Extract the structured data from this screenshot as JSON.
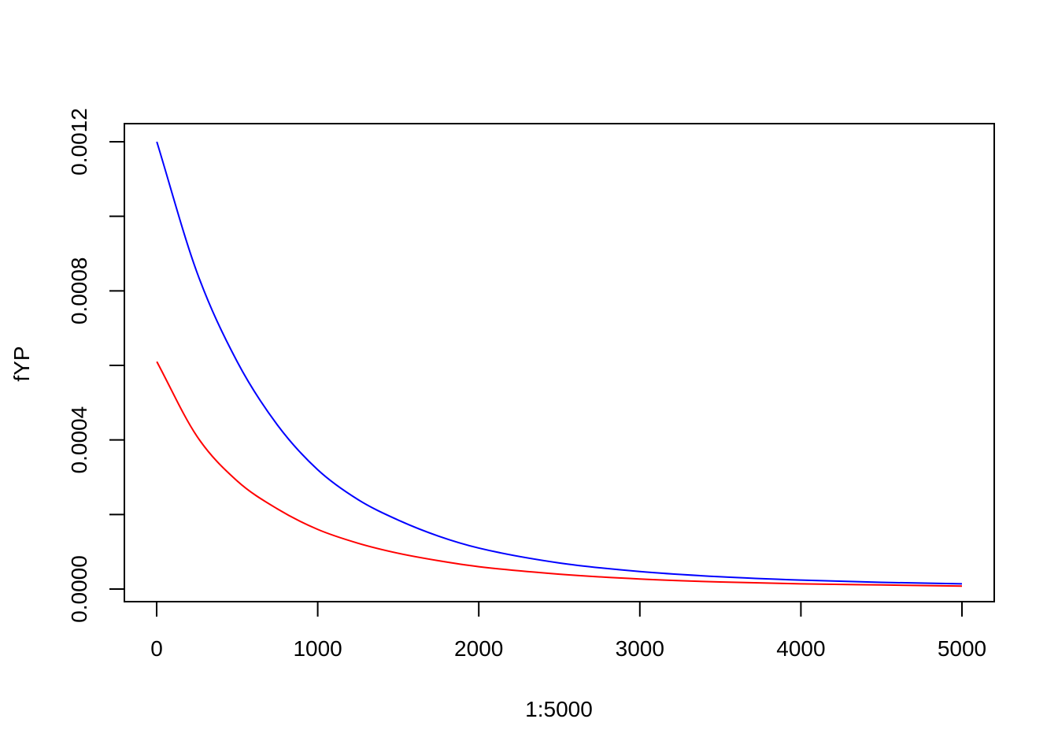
{
  "chart_data": {
    "type": "line",
    "title": "",
    "xlabel": "1:5000",
    "ylabel": "fYP",
    "xlim": [
      0,
      5000
    ],
    "ylim": [
      0,
      0.0012
    ],
    "x_ticks": [
      0,
      1000,
      2000,
      3000,
      4000,
      5000
    ],
    "x_tick_labels": [
      "0",
      "1000",
      "2000",
      "3000",
      "4000",
      "5000"
    ],
    "y_ticks": [
      0,
      0.0002,
      0.0004,
      0.0006,
      0.0008,
      0.001,
      0.0012
    ],
    "y_tick_labels": [
      "0.0000",
      "",
      "0.0004",
      "",
      "0.0008",
      "",
      "0.0012"
    ],
    "grid": false,
    "x": [
      1,
      250,
      500,
      750,
      1000,
      1250,
      1500,
      1750,
      2000,
      2500,
      3000,
      3500,
      4000,
      4500,
      5000
    ],
    "series": [
      {
        "color": "#0000ff",
        "values": [
          0.0012,
          0.00085,
          0.00061,
          0.00044,
          0.00032,
          0.00024,
          0.000185,
          0.000142,
          0.00011,
          7e-05,
          4.7e-05,
          3.3e-05,
          2.4e-05,
          1.8e-05,
          1.4e-05
        ]
      },
      {
        "color": "#ff0000",
        "values": [
          0.00061,
          0.00041,
          0.00029,
          0.000215,
          0.00016,
          0.000123,
          9.6e-05,
          7.6e-05,
          6e-05,
          4e-05,
          2.7e-05,
          1.9e-05,
          1.4e-05,
          1.1e-05,
          8e-06
        ]
      }
    ]
  }
}
